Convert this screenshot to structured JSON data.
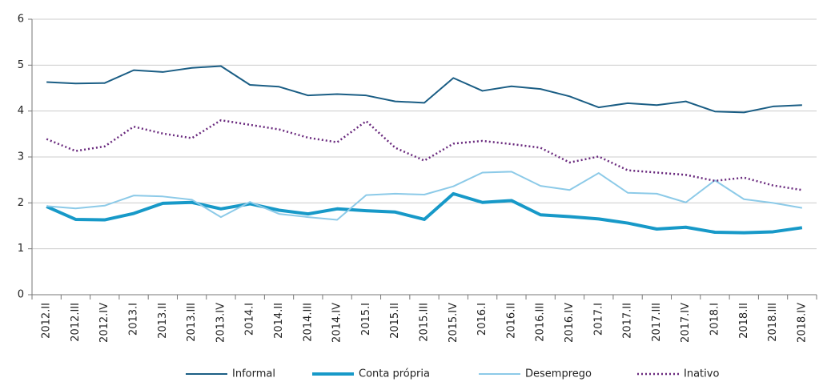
{
  "chart_data": {
    "type": "line",
    "categories": [
      "2012.II",
      "2012.III",
      "2012.IV",
      "2013.I",
      "2013.II",
      "2013.III",
      "2013.IV",
      "2014.I",
      "2014.II",
      "2014.III",
      "2014.IV",
      "2015.I",
      "2015.II",
      "2015.III",
      "2015.IV",
      "2016.I",
      "2016.II",
      "2016.III",
      "2016.IV",
      "2017.I",
      "2017.II",
      "2017.III",
      "2017.IV",
      "2018.I",
      "2018.II",
      "2018.III",
      "2018.IV"
    ],
    "series": [
      {
        "name": "Informal",
        "color": "#1b5e85",
        "width": 2,
        "dash": "none",
        "values": [
          4.63,
          4.6,
          4.61,
          4.89,
          4.85,
          4.94,
          4.98,
          4.57,
          4.53,
          4.34,
          4.37,
          4.34,
          4.21,
          4.18,
          4.72,
          4.44,
          4.54,
          4.48,
          4.32,
          4.08,
          4.17,
          4.13,
          4.21,
          3.99,
          3.97,
          4.1,
          4.13
        ]
      },
      {
        "name": "Conta própria",
        "color": "#1799c8",
        "width": 4,
        "dash": "none",
        "values": [
          1.92,
          1.64,
          1.63,
          1.77,
          1.99,
          2.01,
          1.87,
          1.98,
          1.84,
          1.76,
          1.87,
          1.83,
          1.8,
          1.64,
          2.2,
          2.01,
          2.05,
          1.74,
          1.7,
          1.65,
          1.56,
          1.43,
          1.47,
          1.36,
          1.35,
          1.37,
          1.46
        ]
      },
      {
        "name": "Desemprego",
        "color": "#8ccae8",
        "width": 2,
        "dash": "none",
        "values": [
          1.93,
          1.88,
          1.94,
          2.16,
          2.14,
          2.07,
          1.69,
          2.02,
          1.76,
          1.69,
          1.63,
          2.17,
          2.2,
          2.18,
          2.36,
          2.66,
          2.68,
          2.37,
          2.28,
          2.65,
          2.22,
          2.2,
          2.01,
          2.49,
          2.08,
          2.0,
          1.89
        ]
      },
      {
        "name": "Inativo",
        "color": "#6a2a7e",
        "width": 2.5,
        "dash": "2 3",
        "values": [
          3.39,
          3.13,
          3.23,
          3.66,
          3.51,
          3.41,
          3.8,
          3.7,
          3.6,
          3.42,
          3.32,
          3.78,
          3.2,
          2.92,
          3.29,
          3.35,
          3.28,
          3.2,
          2.88,
          3.01,
          2.71,
          2.66,
          2.61,
          2.48,
          2.55,
          2.38,
          2.28
        ]
      }
    ],
    "ylim": [
      0,
      6
    ],
    "yticks": [
      0,
      1,
      2,
      3,
      4,
      5,
      6
    ],
    "grid": true
  }
}
